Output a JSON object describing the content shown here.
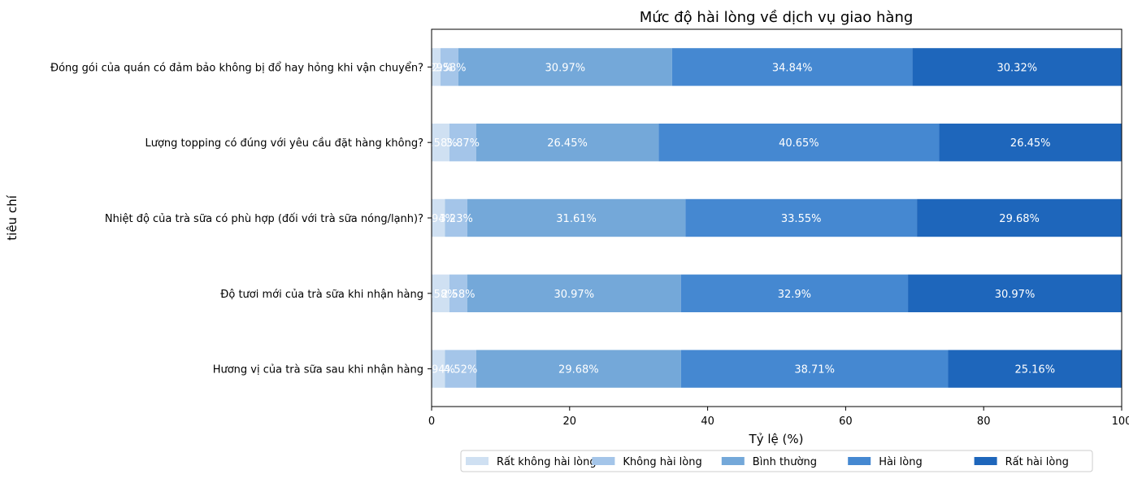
{
  "chart_data": {
    "type": "bar",
    "orientation": "horizontal",
    "stacked": true,
    "title": "Mức độ hài lòng về dịch vụ giao hàng",
    "xlabel": "Tỷ lệ (%)",
    "ylabel": "tiêu chí",
    "xlim": [
      0,
      100
    ],
    "xticks": [
      0,
      20,
      40,
      60,
      80,
      100
    ],
    "grid": false,
    "legend_position": "bottom-center",
    "categories": [
      "Đóng gói của quán có đảm bảo không bị đổ hay hỏng khi vận chuyển?",
      "Lượng topping có đúng với yêu cầu đặt hàng không?",
      "Nhiệt độ của trà sữa có phù hợp (đối với trà sữa nóng/lạnh)?",
      "Độ tươi mới của trà sữa khi nhận hàng",
      "Hương vị của trà sữa sau khi nhận hàng"
    ],
    "series": [
      {
        "name": "Rất không hài lòng",
        "color": "#cfe0f2",
        "values": [
          1.29,
          2.58,
          1.94,
          2.58,
          1.94
        ]
      },
      {
        "name": "Không hài lòng",
        "color": "#a4c5e9",
        "values": [
          2.58,
          3.87,
          3.23,
          2.58,
          4.52
        ]
      },
      {
        "name": "Bình thường",
        "color": "#74a8d9",
        "values": [
          30.97,
          26.45,
          31.61,
          30.97,
          29.68
        ]
      },
      {
        "name": "Hài lòng",
        "color": "#4588d1",
        "values": [
          34.84,
          40.65,
          33.55,
          32.9,
          38.71
        ]
      },
      {
        "name": "Rất hài lòng",
        "color": "#1e66bb",
        "values": [
          30.32,
          26.45,
          29.68,
          30.97,
          25.16
        ]
      }
    ],
    "value_labels": [
      [
        "1.29%",
        "2.58%",
        "30.97%",
        "34.84%",
        "30.32%"
      ],
      [
        "2.58%",
        "3.87%",
        "26.45%",
        "40.65%",
        "26.45%"
      ],
      [
        "1.94%",
        "3.23%",
        "31.61%",
        "33.55%",
        "29.68%"
      ],
      [
        "2.58%",
        "2.58%",
        "30.97%",
        "32.9%",
        "30.97%"
      ],
      [
        "1.94%",
        "4.52%",
        "29.68%",
        "38.71%",
        "25.16%"
      ]
    ]
  }
}
